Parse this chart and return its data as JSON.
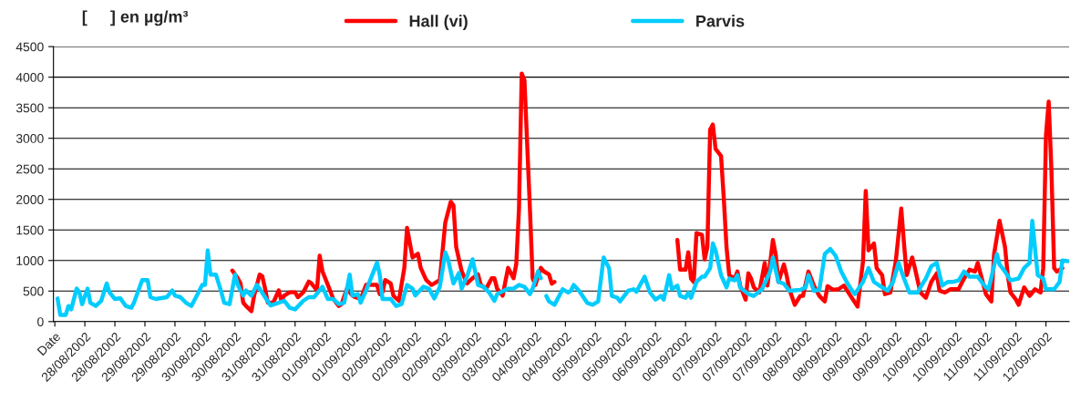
{
  "chart_data": {
    "type": "line",
    "title": "[     ] en µg/m³",
    "xlim": [
      "2002-08-27T22:30",
      "2002-09-12T10:30"
    ],
    "xticks": [
      {
        "value": "2002-08-27T23:00",
        "label": "Date"
      },
      {
        "value": "2002-08-28T10:00",
        "label": "28/08/2002"
      },
      {
        "value": "2002-08-28T21:00",
        "label": "28/08/2002"
      },
      {
        "value": "2002-08-29T08:00",
        "label": "29/08/2002"
      },
      {
        "value": "2002-08-29T19:00",
        "label": "29/08/2002"
      },
      {
        "value": "2002-08-30T06:00",
        "label": "30/08/2002"
      },
      {
        "value": "2002-08-30T17:00",
        "label": "30/08/2002"
      },
      {
        "value": "2002-08-31T04:00",
        "label": "31/08/2002"
      },
      {
        "value": "2002-08-31T15:00",
        "label": "31/08/2002"
      },
      {
        "value": "2002-09-01T02:00",
        "label": "01/09/2002"
      },
      {
        "value": "2002-09-01T13:00",
        "label": "01/09/2002"
      },
      {
        "value": "2002-09-02T00:00",
        "label": "02/09/2002"
      },
      {
        "value": "2002-09-02T11:00",
        "label": "02/09/2002"
      },
      {
        "value": "2002-09-02T22:00",
        "label": "02/09/2002"
      },
      {
        "value": "2002-09-03T09:00",
        "label": "03/09/2002"
      },
      {
        "value": "2002-09-03T20:00",
        "label": "03/09/2002"
      },
      {
        "value": "2002-09-04T07:00",
        "label": "04/09/2002"
      },
      {
        "value": "2002-09-04T18:00",
        "label": "04/09/2002"
      },
      {
        "value": "2002-09-05T05:00",
        "label": "05/09/2002"
      },
      {
        "value": "2002-09-05T16:00",
        "label": "05/09/2002"
      },
      {
        "value": "2002-09-06T03:00",
        "label": "06/09/2002"
      },
      {
        "value": "2002-09-06T14:00",
        "label": "06/09/2002"
      },
      {
        "value": "2002-09-07T01:00",
        "label": "07/09/2002"
      },
      {
        "value": "2002-09-07T12:00",
        "label": "07/09/2002"
      },
      {
        "value": "2002-09-07T23:00",
        "label": "07/09/2002"
      },
      {
        "value": "2002-09-08T10:00",
        "label": "08/09/2002"
      },
      {
        "value": "2002-09-08T21:00",
        "label": "08/09/2002"
      },
      {
        "value": "2002-09-09T08:00",
        "label": "09/09/2002"
      },
      {
        "value": "2002-09-09T19:00",
        "label": "09/09/2002"
      },
      {
        "value": "2002-09-10T06:00",
        "label": "10/09/2002"
      },
      {
        "value": "2002-09-10T17:00",
        "label": "10/09/2002"
      },
      {
        "value": "2002-09-11T04:00",
        "label": "11/09/2002"
      },
      {
        "value": "2002-09-11T15:00",
        "label": "11/09/2002"
      },
      {
        "value": "2002-09-12T02:00",
        "label": "12/09/2002"
      }
    ],
    "ylim": [
      0,
      4500
    ],
    "yticks": [
      0,
      500,
      1000,
      1500,
      2000,
      2500,
      3000,
      3500,
      4000,
      4500
    ],
    "grid": "y",
    "legend": "top",
    "marker": "none",
    "line_style": "solid",
    "series": [
      {
        "name": "Hall (vi)",
        "color": "#ff0000",
        "x": [
          "2002-08-30T16:00",
          "2002-08-30T18:00",
          "2002-08-30T19:00",
          "2002-08-30T20:00",
          "2002-08-30T21:00",
          "2002-08-30T23:00",
          "2002-08-31T00:00",
          "2002-08-31T02:00",
          "2002-08-31T03:00",
          "2002-08-31T04:00",
          "2002-08-31T05:00",
          "2002-08-31T07:00",
          "2002-08-31T09:00",
          "2002-08-31T10:00",
          "2002-08-31T11:00",
          "2002-08-31T13:00",
          "2002-08-31T15:00",
          "2002-08-31T16:00",
          "2002-08-31T18:00",
          "2002-08-31T20:00",
          "2002-08-31T21:00",
          "2002-08-31T23:00",
          "2002-09-01T00:00",
          "2002-09-01T01:00",
          "2002-09-01T03:00",
          "2002-09-01T05:00",
          "2002-09-01T07:00",
          "2002-09-01T08:00",
          "2002-09-01T10:00",
          "2002-09-01T12:00",
          "2002-09-01T13:00",
          "2002-09-01T15:00",
          "2002-09-01T17:00",
          "2002-09-01T19:00",
          "2002-09-01T21:00",
          "2002-09-01T22:00",
          "2002-09-01T23:00",
          "2002-09-02T00:00",
          "2002-09-02T02:00",
          "2002-09-02T03:00",
          "2002-09-02T05:00",
          "2002-09-02T07:00",
          "2002-09-02T08:00",
          "2002-09-02T10:00",
          "2002-09-02T12:00",
          "2002-09-02T13:00",
          "2002-09-02T15:00",
          "2002-09-02T17:00",
          "2002-09-02T18:00",
          "2002-09-02T20:00",
          "2002-09-02T22:00",
          "2002-09-03T00:00",
          "2002-09-03T01:00",
          "2002-09-03T02:00",
          "2002-09-03T04:00",
          "2002-09-03T06:00",
          "2002-09-03T08:00",
          "2002-09-03T10:00",
          "2002-09-03T11:00",
          "2002-09-03T13:00",
          "2002-09-03T15:00",
          "2002-09-03T16:00",
          "2002-09-03T17:00",
          "2002-09-03T19:00",
          "2002-09-03T21:00",
          "2002-09-03T23:00",
          "2002-09-04T00:00",
          "2002-09-04T01:00",
          "2002-09-04T02:00",
          "2002-09-04T03:00",
          "2002-09-04T05:00",
          "2002-09-04T06:00",
          "2002-09-04T07:00",
          "2002-09-04T09:00",
          "2002-09-04T10:00",
          "2002-09-04T12:00",
          "2002-09-04T13:00",
          "2002-09-04T14:00",
          "2002-09-05T07:00",
          "2002-09-06T11:00",
          "2002-09-06T12:00",
          "2002-09-06T14:00",
          "2002-09-06T15:00",
          "2002-09-06T16:00",
          "2002-09-06T17:00",
          "2002-09-06T18:00",
          "2002-09-06T20:00",
          "2002-09-06T21:00",
          "2002-09-06T22:00",
          "2002-09-06T23:00",
          "2002-09-07T00:00",
          "2002-09-07T01:00",
          "2002-09-07T03:00",
          "2002-09-07T04:00",
          "2002-09-07T05:00",
          "2002-09-07T06:00",
          "2002-09-07T08:00",
          "2002-09-07T09:00",
          "2002-09-07T10:00",
          "2002-09-07T12:00",
          "2002-09-07T13:00",
          "2002-09-07T14:00",
          "2002-09-07T15:00",
          "2002-09-07T17:00",
          "2002-09-07T19:00",
          "2002-09-07T20:00",
          "2002-09-07T22:00",
          "2002-09-07T23:00",
          "2002-09-08T00:00",
          "2002-09-08T02:00",
          "2002-09-08T03:00",
          "2002-09-08T04:00",
          "2002-09-08T06:00",
          "2002-09-08T08:00",
          "2002-09-08T09:00",
          "2002-09-08T11:00",
          "2002-09-08T13:00",
          "2002-09-08T15:00",
          "2002-09-08T17:00",
          "2002-09-08T18:00",
          "2002-09-08T20:00",
          "2002-09-08T22:00",
          "2002-09-09T00:00",
          "2002-09-09T02:00",
          "2002-09-09T05:00",
          "2002-09-09T07:00",
          "2002-09-09T08:00",
          "2002-09-09T09:00",
          "2002-09-09T11:00",
          "2002-09-09T12:00",
          "2002-09-09T14:00",
          "2002-09-09T15:00",
          "2002-09-09T17:00",
          "2002-09-09T19:00",
          "2002-09-09T21:00",
          "2002-09-09T22:00",
          "2002-09-09T23:00",
          "2002-09-10T01:00",
          "2002-09-10T02:00",
          "2002-09-10T04:00",
          "2002-09-10T06:00",
          "2002-09-10T08:00",
          "2002-09-10T10:00",
          "2002-09-10T11:00",
          "2002-09-10T13:00",
          "2002-09-10T15:00",
          "2002-09-10T18:00",
          "2002-09-10T20:00",
          "2002-09-10T22:00",
          "2002-09-11T00:00",
          "2002-09-11T01:00",
          "2002-09-11T02:00",
          "2002-09-11T04:00",
          "2002-09-11T06:00",
          "2002-09-11T07:00",
          "2002-09-11T09:00",
          "2002-09-11T11:00",
          "2002-09-11T12:00",
          "2002-09-11T13:00",
          "2002-09-11T15:00",
          "2002-09-11T16:00",
          "2002-09-11T18:00",
          "2002-09-11T20:00",
          "2002-09-11T22:00",
          "2002-09-12T00:00",
          "2002-09-12T01:00",
          "2002-09-12T02:00",
          "2002-09-12T03:00",
          "2002-09-12T04:00",
          "2002-09-12T05:00",
          "2002-09-12T06:00",
          "2002-09-12T08:00"
        ],
        "values": [
          835,
          710,
          625,
          310,
          255,
          170,
          425,
          770,
          740,
          540,
          310,
          310,
          510,
          340,
          425,
          480,
          480,
          400,
          480,
          655,
          625,
          510,
          1080,
          825,
          600,
          370,
          255,
          285,
          540,
          425,
          400,
          370,
          600,
          600,
          600,
          450,
          480,
          680,
          625,
          425,
          340,
          880,
          1535,
          1050,
          1110,
          880,
          680,
          600,
          625,
          680,
          1620,
          1960,
          1900,
          1220,
          825,
          625,
          710,
          770,
          600,
          540,
          710,
          710,
          540,
          425,
          880,
          710,
          940,
          1850,
          4060,
          3950,
          1850,
          710,
          600,
          880,
          825,
          770,
          620,
          650,
          null,
          1335,
          850,
          850,
          1135,
          705,
          650,
          1450,
          1420,
          1020,
          1220,
          3140,
          3225,
          2825,
          2710,
          2020,
          1220,
          760,
          705,
          820,
          590,
          360,
          790,
          705,
          560,
          475,
          960,
          590,
          1335,
          1105,
          650,
          935,
          760,
          530,
          275,
          420,
          420,
          820,
          590,
          420,
          330,
          580,
          520,
          530,
          590,
          450,
          245,
          990,
          2140,
          1165,
          1280,
          875,
          760,
          450,
          475,
          990,
          1850,
          1280,
          760,
          1050,
          875,
          475,
          390,
          650,
          790,
          505,
          475,
          530,
          530,
          705,
          850,
          820,
          960,
          790,
          450,
          330,
          1105,
          1650,
          1220,
          760,
          475,
          360,
          275,
          560,
          420,
          530,
          475,
          875,
          3050,
          3600,
          2480,
          875,
          820,
          875
        ]
      },
      {
        "name": "Parvis",
        "color": "#00ccff",
        "x": [
          "2002-08-28T00:00",
          "2002-08-28T01:00",
          "2002-08-28T03:00",
          "2002-08-28T04:00",
          "2002-08-28T05:00",
          "2002-08-28T07:00",
          "2002-08-28T08:00",
          "2002-08-28T09:00",
          "2002-08-28T11:00",
          "2002-08-28T12:00",
          "2002-08-28T14:00",
          "2002-08-28T16:00",
          "2002-08-28T18:00",
          "2002-08-28T19:00",
          "2002-08-28T21:00",
          "2002-08-28T23:00",
          "2002-08-29T01:00",
          "2002-08-29T03:00",
          "2002-08-29T04:00",
          "2002-08-29T07:00",
          "2002-08-29T09:00",
          "2002-08-29T10:00",
          "2002-08-29T12:00",
          "2002-08-29T16:00",
          "2002-08-29T18:00",
          "2002-08-29T19:00",
          "2002-08-29T21:00",
          "2002-08-29T23:00",
          "2002-08-30T01:00",
          "2002-08-30T03:00",
          "2002-08-30T05:00",
          "2002-08-30T06:00",
          "2002-08-30T07:00",
          "2002-08-30T08:00",
          "2002-08-30T10:00",
          "2002-08-30T12:00",
          "2002-08-30T13:00",
          "2002-08-30T15:00",
          "2002-08-30T17:00",
          "2002-08-30T18:00",
          "2002-08-30T20:00",
          "2002-08-30T21:00",
          "2002-08-30T23:00",
          "2002-08-31T01:00",
          "2002-08-31T02:00",
          "2002-08-31T04:00",
          "2002-08-31T06:00",
          "2002-08-31T09:00",
          "2002-08-31T11:00",
          "2002-08-31T12:00",
          "2002-08-31T13:00",
          "2002-08-31T15:00",
          "2002-08-31T18:00",
          "2002-08-31T20:00",
          "2002-08-31T22:00",
          "2002-09-01T01:00",
          "2002-09-01T03:00",
          "2002-09-01T05:00",
          "2002-09-01T07:00",
          "2002-09-01T09:00",
          "2002-09-01T11:00",
          "2002-09-01T12:00",
          "2002-09-01T14:00",
          "2002-09-01T15:00",
          "2002-09-01T17:00",
          "2002-09-01T21:00",
          "2002-09-01T22:00",
          "2002-09-01T23:00",
          "2002-09-02T02:00",
          "2002-09-02T04:00",
          "2002-09-02T06:00",
          "2002-09-02T08:00",
          "2002-09-02T10:00",
          "2002-09-02T11:00",
          "2002-09-02T14:00",
          "2002-09-02T16:00",
          "2002-09-02T18:00",
          "2002-09-02T20:00",
          "2002-09-02T22:00",
          "2002-09-02T23:00",
          "2002-09-03T01:00",
          "2002-09-03T03:00",
          "2002-09-03T04:00",
          "2002-09-03T06:00",
          "2002-09-03T08:00",
          "2002-09-03T10:00",
          "2002-09-03T12:00",
          "2002-09-03T14:00",
          "2002-09-03T16:00",
          "2002-09-03T17:00",
          "2002-09-03T21:00",
          "2002-09-03T23:00",
          "2002-09-04T01:00",
          "2002-09-04T03:00",
          "2002-09-04T05:00",
          "2002-09-04T06:00",
          "2002-09-04T08:00",
          "2002-09-04T09:00",
          "2002-09-04T10:00",
          "2002-09-04T11:00",
          "2002-09-04T12:00",
          "2002-09-04T14:00",
          "2002-09-04T17:00",
          "2002-09-04T19:00",
          "2002-09-04T20:00",
          "2002-09-04T21:00",
          "2002-09-04T23:00",
          "2002-09-05T02:00",
          "2002-09-05T04:00",
          "2002-09-05T06:00",
          "2002-09-05T08:00",
          "2002-09-05T10:00",
          "2002-09-05T11:00",
          "2002-09-05T13:00",
          "2002-09-05T14:00",
          "2002-09-05T17:00",
          "2002-09-05T19:00",
          "2002-09-05T20:00",
          "2002-09-05T23:00",
          "2002-09-06T01:00",
          "2002-09-06T03:00",
          "2002-09-06T05:00",
          "2002-09-06T06:00",
          "2002-09-06T08:00",
          "2002-09-06T09:00",
          "2002-09-06T11:00",
          "2002-09-06T12:00",
          "2002-09-06T14:00",
          "2002-09-06T15:00",
          "2002-09-06T16:00",
          "2002-09-06T18:00",
          "2002-09-06T20:00",
          "2002-09-06T21:00",
          "2002-09-06T23:00",
          "2002-09-07T00:00",
          "2002-09-07T01:00",
          "2002-09-07T03:00",
          "2002-09-07T05:00",
          "2002-09-07T06:00",
          "2002-09-07T08:00",
          "2002-09-07T09:00",
          "2002-09-07T10:00",
          "2002-09-07T13:00",
          "2002-09-07T15:00",
          "2002-09-07T18:00",
          "2002-09-07T21:00",
          "2002-09-07T22:00",
          "2002-09-08T00:00",
          "2002-09-08T02:00",
          "2002-09-08T04:00",
          "2002-09-08T08:00",
          "2002-09-08T10:00",
          "2002-09-08T11:00",
          "2002-09-08T13:00",
          "2002-09-08T15:00",
          "2002-09-08T17:00",
          "2002-09-08T19:00",
          "2002-09-08T21:00",
          "2002-09-08T23:00",
          "2002-09-09T01:00",
          "2002-09-09T03:00",
          "2002-09-09T04:00",
          "2002-09-09T07:00",
          "2002-09-09T09:00",
          "2002-09-09T11:00",
          "2002-09-09T13:00",
          "2002-09-09T16:00",
          "2002-09-09T18:00",
          "2002-09-09T20:00",
          "2002-09-09T22:00",
          "2002-09-10T00:00",
          "2002-09-10T03:00",
          "2002-09-10T04:00",
          "2002-09-10T06:00",
          "2002-09-10T08:00",
          "2002-09-10T10:00",
          "2002-09-10T12:00",
          "2002-09-10T14:00",
          "2002-09-10T16:00",
          "2002-09-10T18:00",
          "2002-09-10T20:00",
          "2002-09-10T22:00",
          "2002-09-11T01:00",
          "2002-09-11T04:00",
          "2002-09-11T05:00",
          "2002-09-11T08:00",
          "2002-09-11T09:00",
          "2002-09-11T11:00",
          "2002-09-11T13:00",
          "2002-09-11T16:00",
          "2002-09-11T18:00",
          "2002-09-11T20:00",
          "2002-09-11T21:00",
          "2002-09-11T22:00",
          "2002-09-11T23:00",
          "2002-09-12T01:00",
          "2002-09-12T02:00",
          "2002-09-12T05:00",
          "2002-09-12T07:00",
          "2002-09-12T08:00",
          "2002-09-12T10:00"
        ],
        "values": [
          380,
          110,
          110,
          255,
          200,
          540,
          480,
          285,
          540,
          310,
          255,
          340,
          625,
          480,
          370,
          380,
          255,
          227,
          310,
          680,
          680,
          400,
          370,
          400,
          510,
          425,
          400,
          310,
          255,
          425,
          600,
          600,
          1165,
          770,
          770,
          480,
          310,
          285,
          770,
          600,
          425,
          510,
          425,
          600,
          540,
          400,
          265,
          310,
          340,
          285,
          227,
          200,
          340,
          400,
          400,
          570,
          370,
          370,
          285,
          310,
          770,
          425,
          450,
          310,
          510,
          965,
          770,
          370,
          370,
          255,
          285,
          600,
          540,
          425,
          570,
          540,
          380,
          570,
          1135,
          1020,
          625,
          795,
          540,
          740,
          1020,
          600,
          570,
          480,
          340,
          450,
          540,
          540,
          600,
          570,
          450,
          540,
          825,
          710,
          null,
          420,
          330,
          275,
          530,
          475,
          505,
          600,
          505,
          305,
          275,
          330,
          1050,
          875,
          420,
          390,
          330,
          505,
          530,
          487,
          735,
          475,
          360,
          420,
          360,
          760,
          530,
          590,
          420,
          390,
          475,
          390,
          650,
          735,
          735,
          875,
          1280,
          1165,
          760,
          560,
          705,
          675,
          760,
          560,
          450,
          420,
          530,
          820,
          1050,
          650,
          620,
          505,
          520,
          560,
          760,
          505,
          520,
          1105,
          1190,
          1075,
          820,
          650,
          505,
          450,
          650,
          875,
          650,
          590,
          505,
          650,
          960,
          705,
          475,
          475,
          560,
          705,
          905,
          960,
          590,
          650,
          650,
          675,
          820,
          735,
          735,
          560,
          530,
          1105,
          935,
          820,
          675,
          705,
          875,
          960,
          1650,
          1190,
          760,
          705,
          530,
          530,
          650,
          1000,
          990
        ]
      }
    ]
  }
}
